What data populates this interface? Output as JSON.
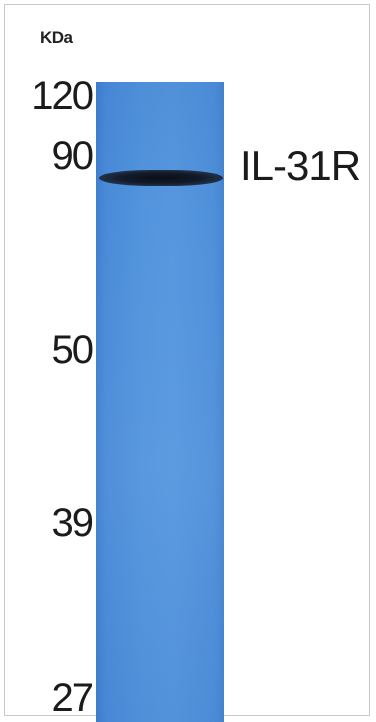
{
  "unit_label": "KDa",
  "markers": [
    {
      "label": "120",
      "kda": 120
    },
    {
      "label": "90",
      "kda": 90
    },
    {
      "label": "50",
      "kda": 50
    },
    {
      "label": "39",
      "kda": 39
    },
    {
      "label": "27",
      "kda": 27
    }
  ],
  "band": {
    "label": "IL-31R"
  },
  "colors": {
    "lane": "#5294dd",
    "band": "#0f1622"
  }
}
